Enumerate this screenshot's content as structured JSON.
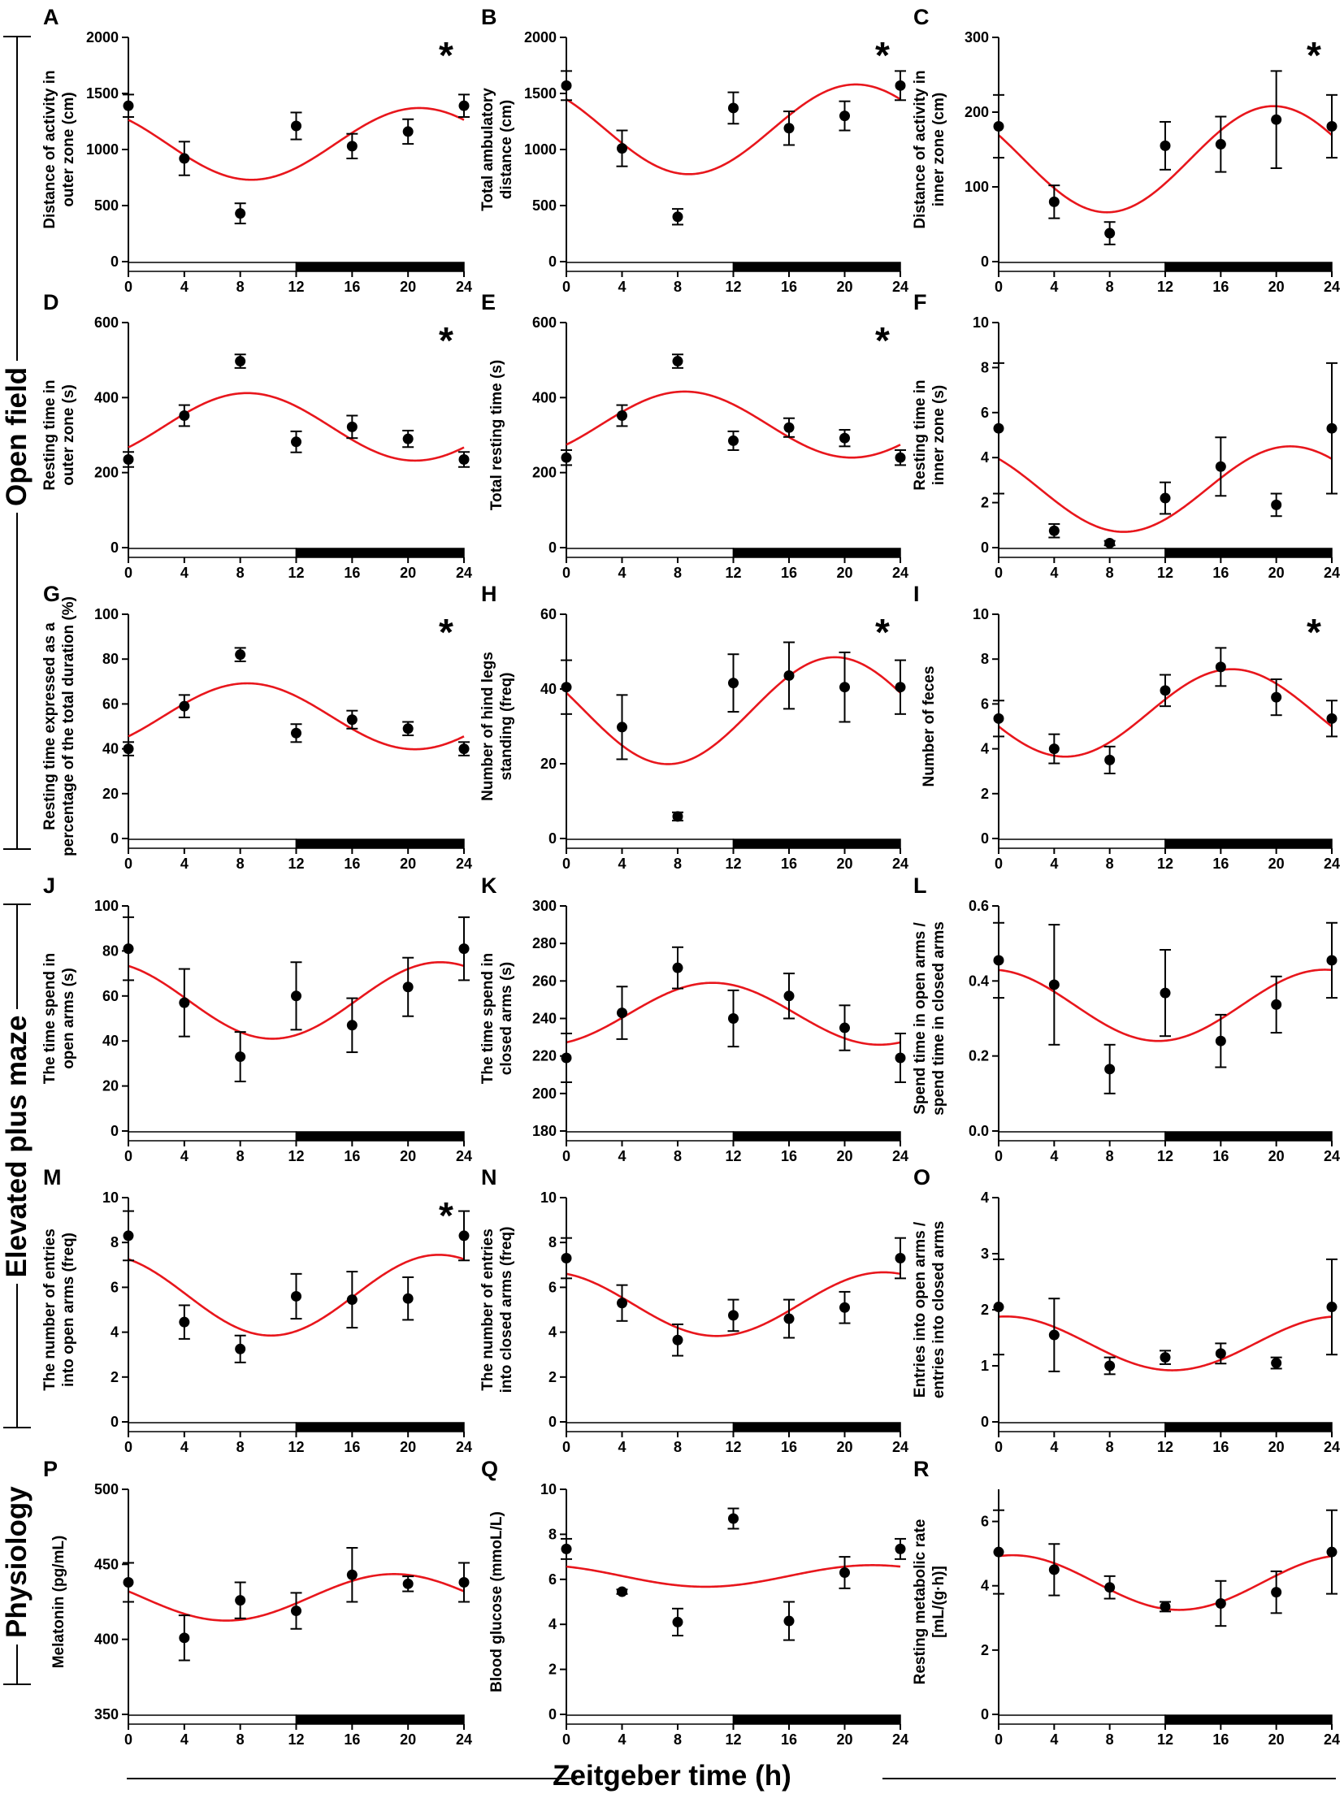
{
  "figure": {
    "xlabel": "Zeitgeber time (h)",
    "sections": [
      {
        "label": "Open field"
      },
      {
        "label": "Elevated plus maze"
      },
      {
        "label": "Physiology"
      }
    ],
    "colors": {
      "fit": "#e8161c",
      "points": "#000000",
      "light_bar": "#ffffff",
      "dark_bar": "#000000"
    },
    "light_dark_bar": {
      "light": [
        0,
        12
      ],
      "dark": [
        12,
        24
      ]
    },
    "significance_marker": "*"
  },
  "chart_data": [
    {
      "panel": "A",
      "type": "scatter",
      "ylabel": "Distance of activity in\nouter zone (cm)",
      "xlim": [
        0,
        24
      ],
      "xticks": [
        "0",
        "4",
        "8",
        "12",
        "16",
        "20",
        "24"
      ],
      "ylim": [
        0,
        2000
      ],
      "yticks": [
        0,
        500,
        1000,
        1500,
        2000
      ],
      "x": [
        0,
        4,
        8,
        12,
        16,
        20,
        24
      ],
      "y": [
        1390,
        920,
        430,
        1210,
        1030,
        1160,
        1390
      ],
      "err": [
        100,
        150,
        90,
        120,
        110,
        110,
        100
      ],
      "fit": {
        "mesor": 1050,
        "amplitude": 320,
        "peak": 20.8
      },
      "significant": true
    },
    {
      "panel": "B",
      "type": "scatter",
      "ylabel": "Total ambulatory\ndistance (cm)",
      "xlim": [
        0,
        24
      ],
      "xticks": [
        "0",
        "4",
        "8",
        "12",
        "16",
        "20",
        "24"
      ],
      "ylim": [
        0,
        2000
      ],
      "yticks": [
        0,
        500,
        1000,
        1500,
        2000
      ],
      "x": [
        0,
        4,
        8,
        12,
        16,
        20,
        24
      ],
      "y": [
        1570,
        1010,
        400,
        1370,
        1190,
        1300,
        1570
      ],
      "err": [
        130,
        160,
        70,
        140,
        150,
        130,
        130
      ],
      "fit": {
        "mesor": 1180,
        "amplitude": 400,
        "peak": 20.8
      },
      "significant": true
    },
    {
      "panel": "C",
      "type": "scatter",
      "ylabel": "Distance of activity in\ninner zone (cm)",
      "xlim": [
        0,
        24
      ],
      "xticks": [
        "0",
        "4",
        "8",
        "12",
        "16",
        "20",
        "24"
      ],
      "ylim": [
        0,
        300
      ],
      "yticks": [
        0,
        100,
        200,
        300
      ],
      "x": [
        0,
        4,
        8,
        12,
        16,
        20,
        24
      ],
      "y": [
        181,
        80,
        38,
        155,
        157,
        190,
        181
      ],
      "err": [
        42,
        22,
        15,
        32,
        37,
        65,
        42
      ],
      "fit": {
        "mesor": 137,
        "amplitude": 71,
        "peak": 19.8
      },
      "significant": true
    },
    {
      "panel": "D",
      "type": "scatter",
      "ylabel": "Resting time in\nouter zone (s)",
      "xlim": [
        0,
        24
      ],
      "xticks": [
        "0",
        "4",
        "8",
        "12",
        "16",
        "20",
        "24"
      ],
      "ylim": [
        0,
        600
      ],
      "yticks": [
        0,
        200,
        400,
        600
      ],
      "x": [
        0,
        4,
        8,
        12,
        16,
        20,
        24
      ],
      "y": [
        235,
        352,
        497,
        282,
        322,
        290,
        235
      ],
      "err": [
        20,
        28,
        18,
        28,
        30,
        22,
        20
      ],
      "fit": {
        "mesor": 322,
        "amplitude": 90,
        "peak": 8.5
      },
      "significant": true
    },
    {
      "panel": "E",
      "type": "scatter",
      "ylabel": "Total resting time (s)",
      "xlim": [
        0,
        24
      ],
      "xticks": [
        "0",
        "4",
        "8",
        "12",
        "16",
        "20",
        "24"
      ],
      "ylim": [
        0,
        600
      ],
      "yticks": [
        0,
        200,
        400,
        600
      ],
      "x": [
        0,
        4,
        8,
        12,
        16,
        20,
        24
      ],
      "y": [
        240,
        352,
        497,
        285,
        320,
        292,
        240
      ],
      "err": [
        20,
        28,
        18,
        25,
        25,
        22,
        20
      ],
      "fit": {
        "mesor": 328,
        "amplitude": 88,
        "peak": 8.5
      },
      "significant": true
    },
    {
      "panel": "F",
      "type": "scatter",
      "ylabel": "Resting time in\ninner zone (s)",
      "xlim": [
        0,
        24
      ],
      "xticks": [
        "0",
        "4",
        "8",
        "12",
        "16",
        "20",
        "24"
      ],
      "ylim": [
        0,
        10
      ],
      "yticks": [
        0,
        2,
        4,
        6,
        8,
        10
      ],
      "x": [
        0,
        4,
        8,
        12,
        16,
        20,
        24
      ],
      "y": [
        5.3,
        0.75,
        0.2,
        2.2,
        3.6,
        1.9,
        5.3
      ],
      "err": [
        2.9,
        0.3,
        0.1,
        0.7,
        1.3,
        0.5,
        2.9
      ],
      "fit": {
        "mesor": 2.6,
        "amplitude": 1.9,
        "peak": 21.0
      },
      "significant": false
    },
    {
      "panel": "G",
      "type": "scatter",
      "ylabel": "Resting time expressed as a\npercentage of the total duration (%)",
      "xlim": [
        0,
        24
      ],
      "xticks": [
        "0",
        "4",
        "8",
        "12",
        "16",
        "20",
        "24"
      ],
      "ylim": [
        0,
        100
      ],
      "yticks": [
        0,
        20,
        40,
        60,
        80,
        100
      ],
      "x": [
        0,
        4,
        8,
        12,
        16,
        20,
        24
      ],
      "y": [
        40,
        59,
        82,
        47,
        53,
        49,
        40
      ],
      "err": [
        3,
        5,
        3,
        4,
        4,
        3,
        3
      ],
      "fit": {
        "mesor": 54.5,
        "amplitude": 14.7,
        "peak": 8.5
      },
      "significant": true
    },
    {
      "panel": "H",
      "type": "scatter",
      "ylabel": "Number of hind legs\nstanding (freq)",
      "xlim": [
        0,
        24
      ],
      "xticks": [
        "0",
        "4",
        "8",
        "12",
        "16",
        "20",
        "24"
      ],
      "ylim": [
        0,
        60
      ],
      "yticks": [
        0,
        20,
        40,
        60
      ],
      "x": [
        0,
        4,
        8,
        12,
        16,
        20,
        24
      ],
      "y": [
        40.5,
        29.8,
        5.9,
        41.6,
        43.6,
        40.5,
        40.5
      ],
      "err": [
        7.2,
        8.6,
        1.1,
        7.7,
        8.9,
        9.3,
        7.2
      ],
      "fit": {
        "mesor": 34.2,
        "amplitude": 14.3,
        "peak": 19.3
      },
      "significant": true
    },
    {
      "panel": "I",
      "type": "scatter",
      "ylabel": "Number of feces",
      "xlim": [
        0,
        24
      ],
      "xticks": [
        "0",
        "4",
        "8",
        "12",
        "16",
        "20",
        "24"
      ],
      "ylim": [
        0,
        10
      ],
      "yticks": [
        0,
        2,
        4,
        6,
        8,
        10
      ],
      "x": [
        0,
        4,
        8,
        12,
        16,
        20,
        24
      ],
      "y": [
        5.35,
        4.0,
        3.5,
        6.6,
        7.65,
        6.3,
        5.35
      ],
      "err": [
        0.8,
        0.65,
        0.6,
        0.7,
        0.85,
        0.8,
        0.8
      ],
      "fit": {
        "mesor": 5.6,
        "amplitude": 1.95,
        "peak": 16.8
      },
      "significant": true
    },
    {
      "panel": "J",
      "type": "scatter",
      "ylabel": "The time spend in\nopen arms (s)",
      "xlim": [
        0,
        24
      ],
      "xticks": [
        "0",
        "4",
        "8",
        "12",
        "16",
        "20",
        "24"
      ],
      "ylim": [
        0,
        100
      ],
      "yticks": [
        0,
        20,
        40,
        60,
        80,
        100
      ],
      "x": [
        0,
        4,
        8,
        12,
        16,
        20,
        24
      ],
      "y": [
        81,
        57,
        33,
        60,
        47,
        64,
        81
      ],
      "err": [
        14,
        15,
        11,
        15,
        12,
        13,
        14
      ],
      "fit": {
        "mesor": 58,
        "amplitude": 17,
        "peak": 22.3
      },
      "significant": false
    },
    {
      "panel": "K",
      "type": "scatter",
      "ylabel": "The time spend in\nclosed arms (s)",
      "xlim": [
        0,
        24
      ],
      "xticks": [
        "0",
        "4",
        "8",
        "12",
        "16",
        "20",
        "24"
      ],
      "ylim": [
        180,
        300
      ],
      "yticks": [
        180,
        200,
        220,
        240,
        260,
        280,
        300
      ],
      "x": [
        0,
        4,
        8,
        12,
        16,
        20,
        24
      ],
      "y": [
        219,
        243,
        267,
        240,
        252,
        235,
        219
      ],
      "err": [
        13,
        14,
        11,
        15,
        12,
        12,
        13
      ],
      "fit": {
        "mesor": 242.5,
        "amplitude": 16.5,
        "peak": 10.5
      },
      "significant": false
    },
    {
      "panel": "L",
      "type": "scatter",
      "ylabel": "Spend time in open arms /\nspend time in closed arms",
      "xlim": [
        0,
        24
      ],
      "xticks": [
        "0",
        "4",
        "8",
        "12",
        "16",
        "20",
        "24"
      ],
      "ylim": [
        0,
        0.6
      ],
      "yticks": [
        "0.0",
        "0.2",
        "0.4",
        "0.6"
      ],
      "yticks_num": [
        0,
        0.2,
        0.4,
        0.6
      ],
      "x": [
        0,
        4,
        8,
        12,
        16,
        20,
        24
      ],
      "y": [
        0.455,
        0.39,
        0.165,
        0.368,
        0.24,
        0.337,
        0.455
      ],
      "err": [
        0.1,
        0.16,
        0.065,
        0.115,
        0.07,
        0.075,
        0.1
      ],
      "fit": {
        "mesor": 0.335,
        "amplitude": 0.095,
        "peak": 23.5
      },
      "significant": false
    },
    {
      "panel": "M",
      "type": "scatter",
      "ylabel": "The number of entries\ninto open arms (freq)",
      "xlim": [
        0,
        24
      ],
      "xticks": [
        "0",
        "4",
        "8",
        "12",
        "16",
        "20",
        "24"
      ],
      "ylim": [
        0,
        10
      ],
      "yticks": [
        0,
        2,
        4,
        6,
        8,
        10
      ],
      "x": [
        0,
        4,
        8,
        12,
        16,
        20,
        24
      ],
      "y": [
        8.3,
        4.45,
        3.25,
        5.6,
        5.45,
        5.5,
        8.3
      ],
      "err": [
        1.1,
        0.75,
        0.6,
        1.0,
        1.25,
        0.95,
        1.1
      ],
      "fit": {
        "mesor": 5.65,
        "amplitude": 1.8,
        "peak": 22.2
      },
      "significant": true
    },
    {
      "panel": "N",
      "type": "scatter",
      "ylabel": "The number of entries\ninto closed arms (freq)",
      "xlim": [
        0,
        24
      ],
      "xticks": [
        "0",
        "4",
        "8",
        "12",
        "16",
        "20",
        "24"
      ],
      "ylim": [
        0,
        10
      ],
      "yticks": [
        0,
        2,
        4,
        6,
        8,
        10
      ],
      "x": [
        0,
        4,
        8,
        12,
        16,
        20,
        24
      ],
      "y": [
        7.3,
        5.3,
        3.65,
        4.75,
        4.6,
        5.1,
        7.3
      ],
      "err": [
        0.9,
        0.8,
        0.7,
        0.7,
        0.85,
        0.7,
        0.9
      ],
      "fit": {
        "mesor": 5.25,
        "amplitude": 1.42,
        "peak": 22.8
      },
      "significant": false
    },
    {
      "panel": "O",
      "type": "scatter",
      "ylabel": "Entries into open arms /\nentries into closed arms",
      "xlim": [
        0,
        24
      ],
      "xticks": [
        "0",
        "4",
        "8",
        "12",
        "16",
        "20",
        "24"
      ],
      "ylim": [
        0,
        4
      ],
      "yticks": [
        0,
        1,
        2,
        3,
        4
      ],
      "x": [
        0,
        4,
        8,
        12,
        16,
        20,
        24
      ],
      "y": [
        2.05,
        1.55,
        1.0,
        1.15,
        1.22,
        1.05,
        2.05
      ],
      "err": [
        0.85,
        0.65,
        0.15,
        0.12,
        0.18,
        0.1,
        0.85
      ],
      "fit": {
        "mesor": 1.4,
        "amplitude": 0.48,
        "peak": 0.5
      },
      "significant": false
    },
    {
      "panel": "P",
      "type": "scatter",
      "ylabel": "Melatonin (pg/mL)",
      "xlim": [
        0,
        24
      ],
      "xticks": [
        "0",
        "4",
        "8",
        "12",
        "16",
        "20",
        "24"
      ],
      "ylim": [
        350,
        500
      ],
      "yticks": [
        350,
        400,
        450,
        500
      ],
      "x": [
        0,
        4,
        8,
        12,
        16,
        20,
        24
      ],
      "y": [
        438,
        401,
        426,
        419,
        443,
        437,
        438
      ],
      "err": [
        13,
        15,
        12,
        12,
        18,
        5,
        13
      ],
      "fit": {
        "mesor": 428,
        "amplitude": 15.5,
        "peak": 19.0
      },
      "significant": false
    },
    {
      "panel": "Q",
      "type": "scatter",
      "ylabel": "Blood glucose (mmoL/L)",
      "xlim": [
        0,
        24
      ],
      "xticks": [
        "0",
        "4",
        "8",
        "12",
        "16",
        "20",
        "24"
      ],
      "ylim": [
        0,
        10
      ],
      "yticks": [
        0,
        2,
        4,
        6,
        8,
        10
      ],
      "x": [
        0,
        4,
        8,
        12,
        16,
        20,
        24
      ],
      "y": [
        7.35,
        5.45,
        4.1,
        8.7,
        4.15,
        6.3,
        7.35
      ],
      "err": [
        0.45,
        0.1,
        0.6,
        0.45,
        0.85,
        0.7,
        0.45
      ],
      "fit": {
        "mesor": 6.15,
        "amplitude": 0.48,
        "peak": 22.0
      },
      "significant": false
    },
    {
      "panel": "R",
      "type": "scatter",
      "ylabel": "Resting metabolic rate\n[mL/(g·h)]",
      "xlim": [
        0,
        24
      ],
      "xticks": [
        "0",
        "4",
        "8",
        "12",
        "16",
        "20",
        "24"
      ],
      "ylim": [
        0,
        7
      ],
      "yticks": [
        0,
        2,
        4,
        6
      ],
      "x": [
        0,
        4,
        8,
        12,
        16,
        20,
        24
      ],
      "y": [
        5.05,
        4.5,
        3.95,
        3.35,
        3.45,
        3.8,
        5.05
      ],
      "err": [
        1.3,
        0.8,
        0.35,
        0.15,
        0.7,
        0.65,
        1.3
      ],
      "fit": {
        "mesor": 4.1,
        "amplitude": 0.85,
        "peak": 1.0
      },
      "significant": false
    }
  ]
}
